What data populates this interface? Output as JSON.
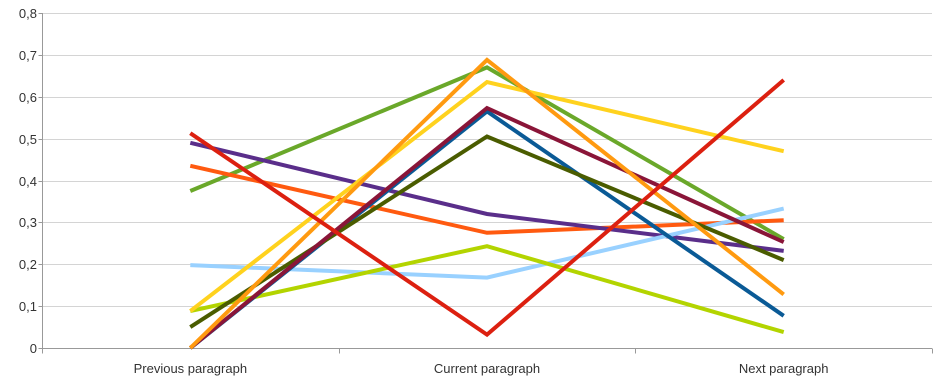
{
  "chart_data": {
    "type": "line",
    "title": "",
    "xlabel": "",
    "ylabel": "",
    "categories": [
      "Previous paragraph",
      "Current paragraph",
      "Next paragraph"
    ],
    "ylim": [
      0,
      0.8
    ],
    "yticks": [
      {
        "value": 0,
        "label": "0"
      },
      {
        "value": 0.1,
        "label": "0,1"
      },
      {
        "value": 0.2,
        "label": "0,2"
      },
      {
        "value": 0.3,
        "label": "0,3"
      },
      {
        "value": 0.4,
        "label": "0,4"
      },
      {
        "value": 0.5,
        "label": "0,5"
      },
      {
        "value": 0.6,
        "label": "0,6"
      },
      {
        "value": 0.7,
        "label": "0,7"
      },
      {
        "value": 0.8,
        "label": "0,8"
      }
    ],
    "grid": true,
    "legend": "none",
    "series": [
      {
        "color": "#6aa82a",
        "values": [
          0.375,
          0.67,
          0.26
        ]
      },
      {
        "color": "#ff5a10",
        "values": [
          0.435,
          0.275,
          0.305
        ]
      },
      {
        "color": "#5a2e8a",
        "values": [
          0.49,
          0.32,
          0.232
        ]
      },
      {
        "color": "#99d1ff",
        "values": [
          0.198,
          0.168,
          0.333
        ]
      },
      {
        "color": "#b3d400",
        "values": [
          0.088,
          0.243,
          0.038
        ]
      },
      {
        "color": "#ffd21e",
        "values": [
          0.088,
          0.635,
          0.47
        ]
      },
      {
        "color": "#0a5a96",
        "values": [
          0.0,
          0.565,
          0.077
        ]
      },
      {
        "color": "#4a5c00",
        "values": [
          0.05,
          0.505,
          0.21
        ]
      },
      {
        "color": "#8a1538",
        "values": [
          0.0,
          0.573,
          0.253
        ]
      },
      {
        "color": "#ff9a10",
        "values": [
          0.0,
          0.688,
          0.128
        ]
      },
      {
        "color": "#dc2010",
        "values": [
          0.513,
          0.032,
          0.64
        ]
      }
    ]
  }
}
